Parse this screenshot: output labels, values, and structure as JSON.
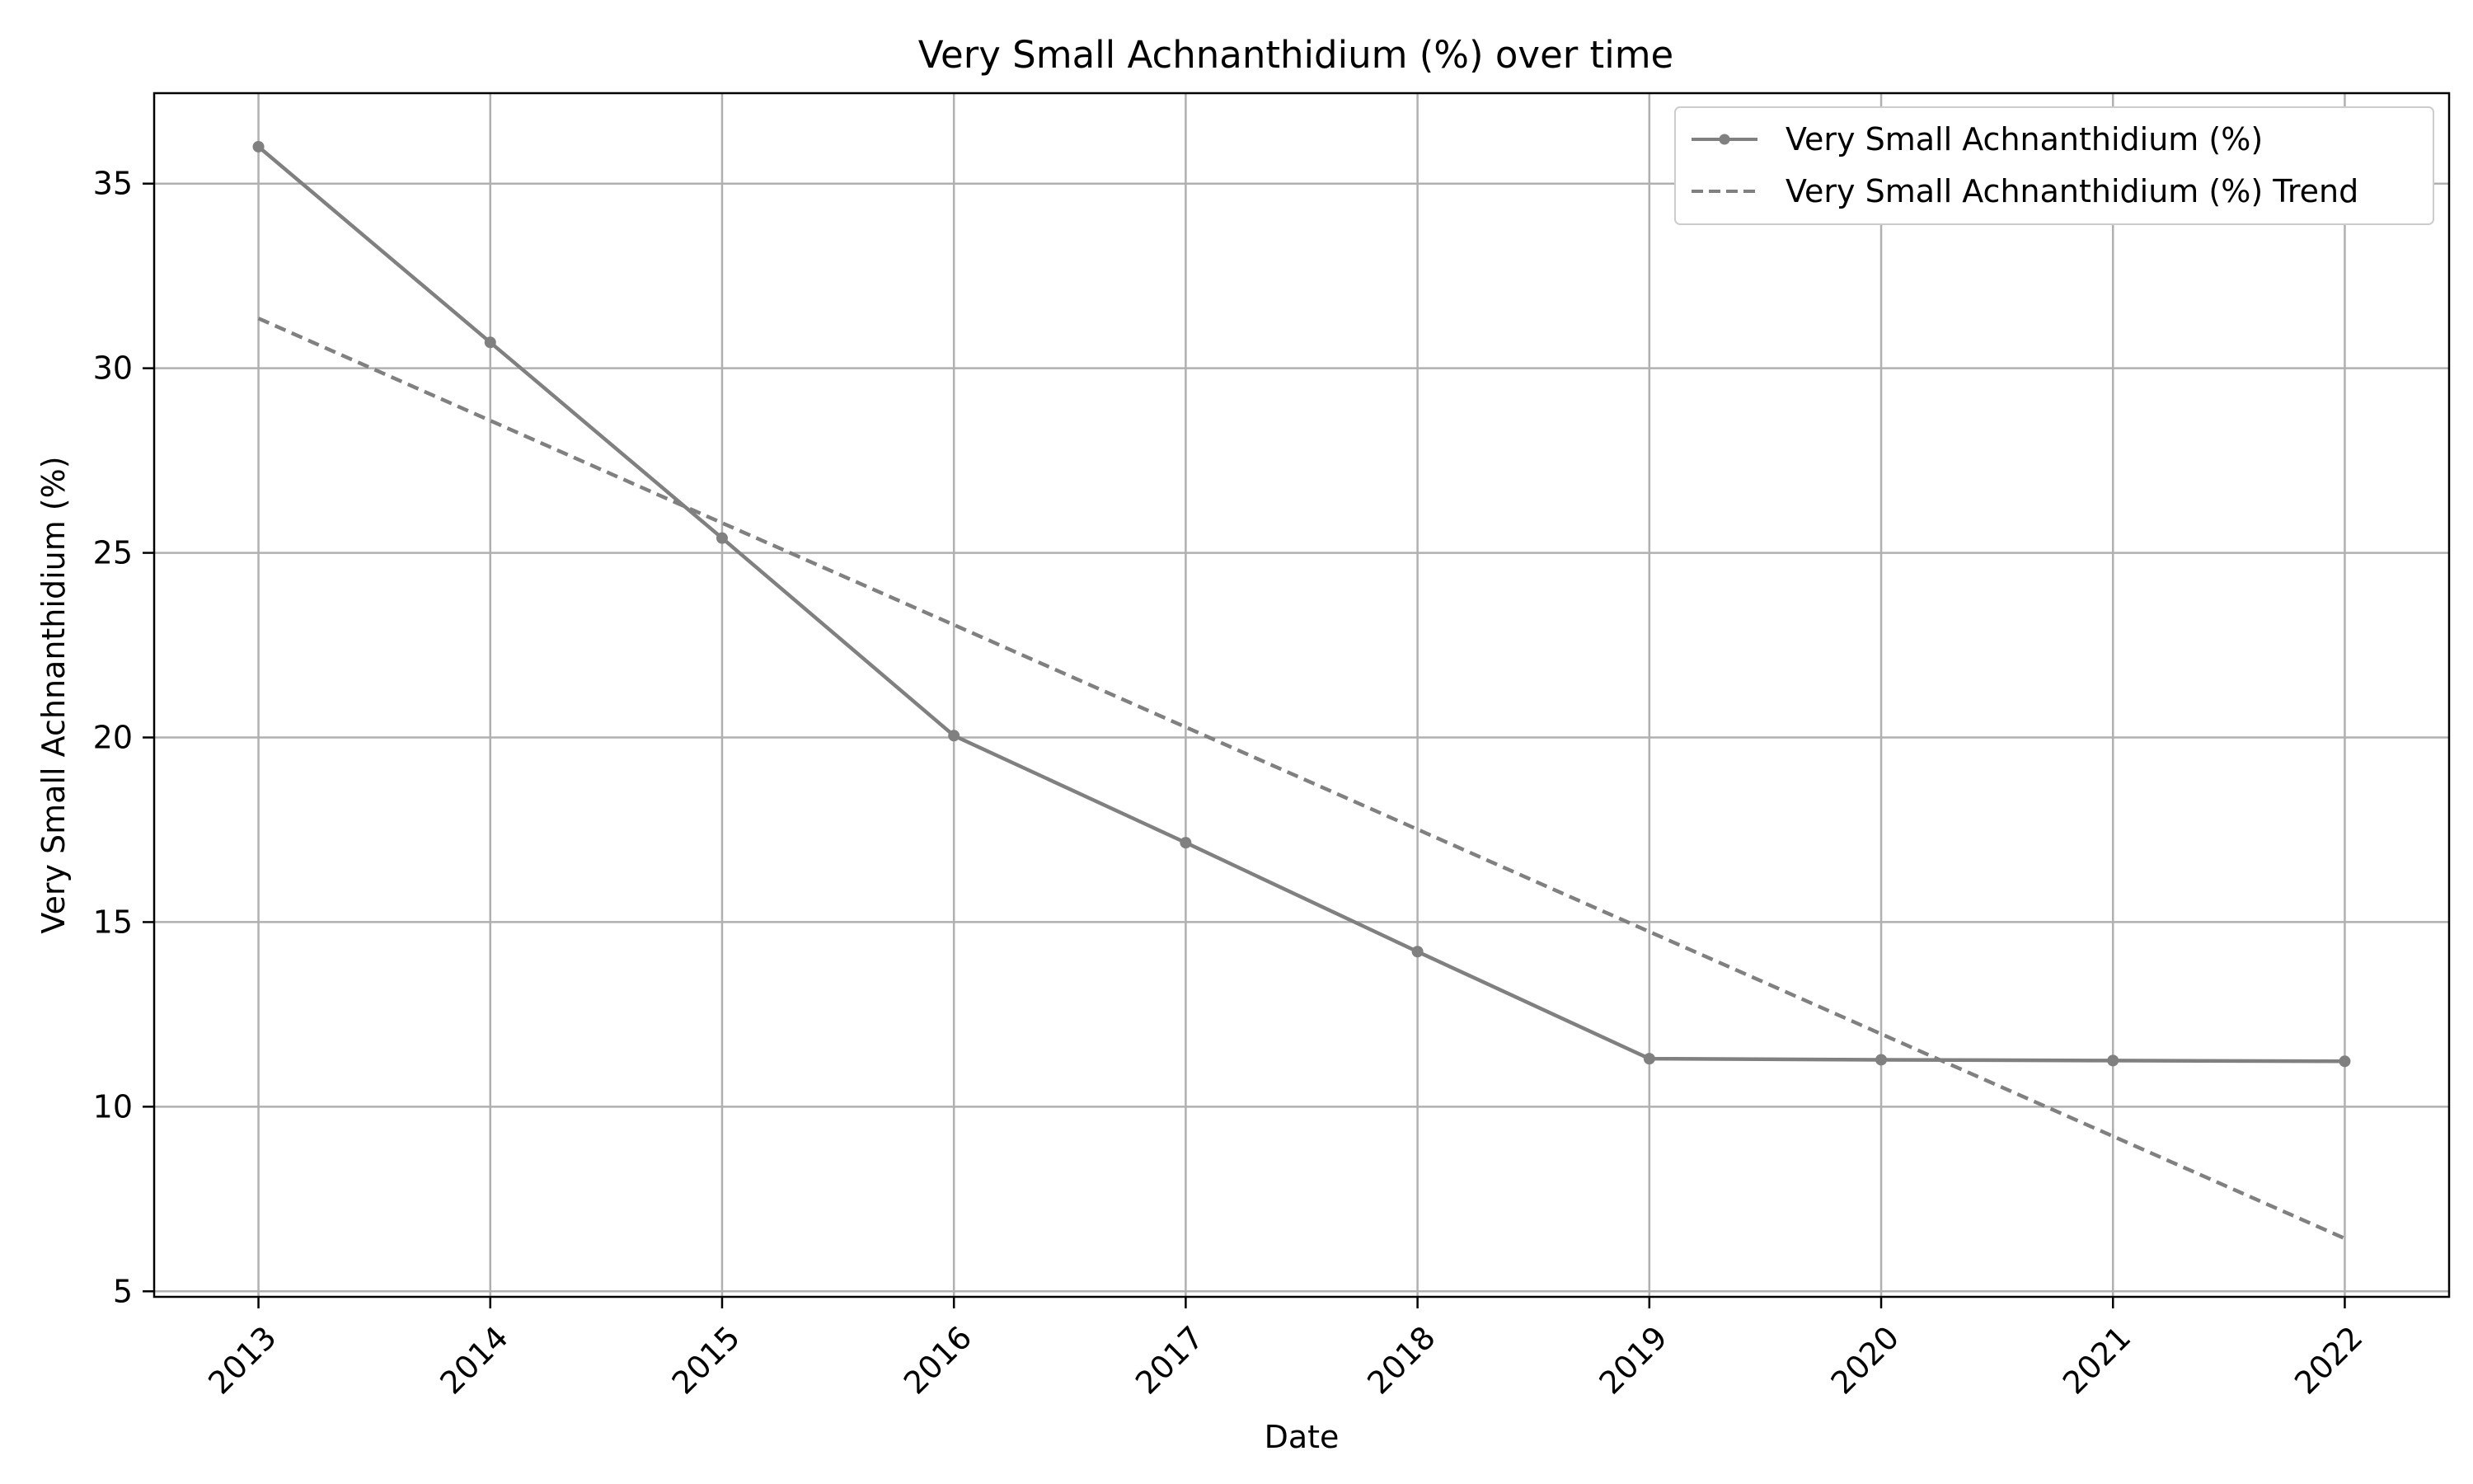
{
  "chart_data": {
    "type": "line",
    "title": "Very Small Achnanthidium (%) over time",
    "xlabel": "Date",
    "ylabel": "Very Small Achnanthidium (%)",
    "x": [
      "2013",
      "2014",
      "2015",
      "2016",
      "2017",
      "2018",
      "2019",
      "2020",
      "2021",
      "2022"
    ],
    "series": [
      {
        "name": "Very Small Achnanthidium (%)",
        "style": "solid-with-markers",
        "color": "#808080",
        "values": [
          36.0,
          30.7,
          25.4,
          20.05,
          17.15,
          14.2,
          11.3,
          11.27,
          11.25,
          11.23
        ]
      },
      {
        "name": "Very Small Achnanthidium (%) Trend",
        "style": "dashed",
        "color": "#808080",
        "values": [
          31.35,
          28.58,
          25.81,
          23.05,
          20.28,
          17.51,
          14.74,
          11.97,
          9.2,
          6.43
        ]
      }
    ],
    "xlim": [
      "2012.55",
      "2022.45"
    ],
    "ylim": [
      4.85,
      37.45
    ],
    "yticks": [
      5,
      10,
      15,
      20,
      25,
      30,
      35
    ],
    "xticks": [
      "2013",
      "2014",
      "2015",
      "2016",
      "2017",
      "2018",
      "2019",
      "2020",
      "2021",
      "2022"
    ],
    "grid": true,
    "legend_position": "top-right"
  }
}
